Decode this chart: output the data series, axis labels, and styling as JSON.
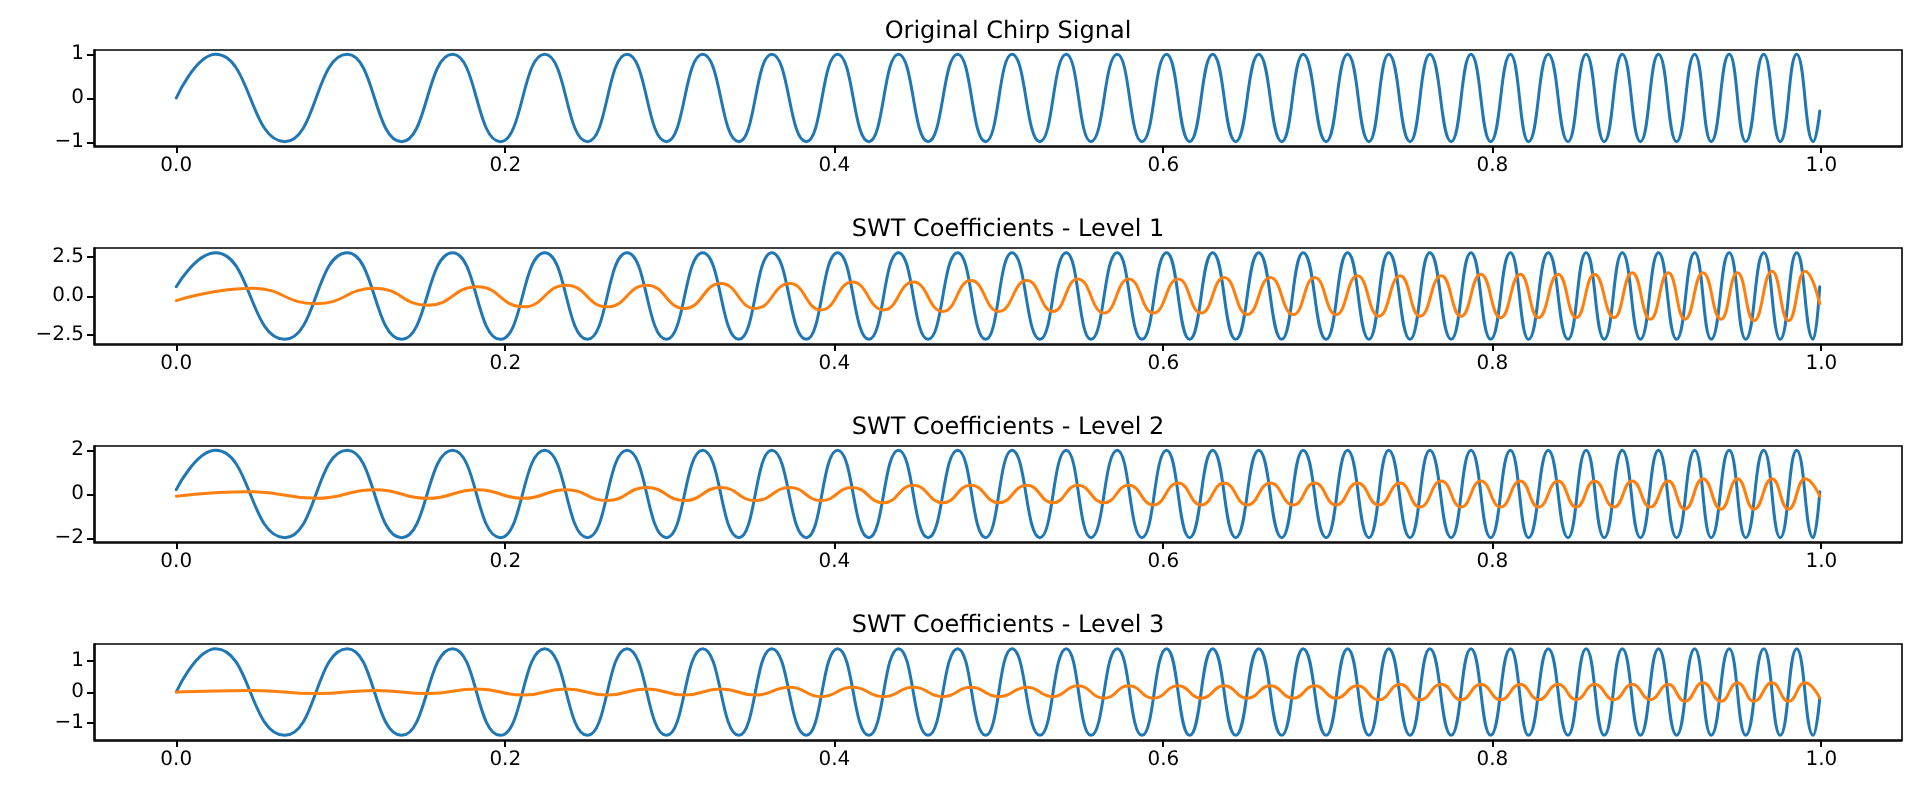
{
  "chart_data": [
    {
      "type": "line",
      "title": "Original Chirp Signal",
      "xlim": [
        -0.05,
        1.049
      ],
      "xticks": [
        {
          "value": 0,
          "label": "0.0"
        },
        {
          "value": 0.2,
          "label": "0.2"
        },
        {
          "value": 0.4,
          "label": "0.4"
        },
        {
          "value": 0.6,
          "label": "0.6"
        },
        {
          "value": 0.8,
          "label": "0.8"
        },
        {
          "value": 1,
          "label": "1.0"
        }
      ],
      "ylim": [
        -1.1,
        1.1
      ],
      "yticks": [
        {
          "value": -1,
          "label": "−1"
        },
        0,
        1
      ],
      "x": [
        0,
        0.024,
        0.066,
        0.104,
        0.137,
        0.168,
        0.197,
        0.224,
        0.25,
        0.274,
        0.298,
        0.32,
        0.342,
        0.362,
        0.383,
        0.402,
        0.421,
        0.439,
        0.457,
        0.475,
        0.492,
        0.508,
        0.525,
        0.541,
        0.556,
        0.572,
        0.587,
        0.602,
        0.616,
        0.63,
        0.644,
        0.658,
        0.672,
        0.685,
        0.699,
        0.712,
        0.725,
        0.737,
        0.75,
        0.762,
        0.775,
        0.787,
        0.799,
        0.811,
        0.822,
        0.834,
        0.846,
        0.857,
        0.868,
        0.879,
        0.89,
        0.901,
        0.912,
        0.923,
        0.933,
        0.944,
        0.954,
        0.965,
        0.975,
        0.985,
        0.995,
        0.999
      ],
      "series": [
        {
          "color": "#1f77b4",
          "values": [
            0,
            1,
            -1,
            1,
            -1,
            1,
            -1,
            1,
            -1,
            1,
            -1,
            1,
            -1,
            1,
            -1,
            1,
            -1,
            1,
            -1,
            1,
            -1,
            1,
            -1,
            1,
            -1,
            1,
            -1,
            1,
            -1,
            1,
            -1,
            1,
            -1,
            1,
            -1,
            1,
            -1,
            1,
            -1,
            1,
            -1,
            1,
            -1,
            1,
            -1,
            1,
            -1,
            1,
            -1,
            1,
            -1,
            1,
            -1,
            1,
            -1,
            1,
            -1,
            1,
            -1,
            1,
            -1,
            -0.3
          ]
        }
      ]
    },
    {
      "type": "line",
      "title": "SWT Coefficients - Level 1",
      "xlim": [
        -0.05,
        1.049
      ],
      "xticks": [
        {
          "value": 0,
          "label": "0.0"
        },
        {
          "value": 0.2,
          "label": "0.2"
        },
        {
          "value": 0.4,
          "label": "0.4"
        },
        {
          "value": 0.6,
          "label": "0.6"
        },
        {
          "value": 0.8,
          "label": "0.8"
        },
        {
          "value": 1,
          "label": "1.0"
        }
      ],
      "ylim": [
        -3.1,
        3.1
      ],
      "yticks": [
        {
          "value": -2.5,
          "label": "−2.5"
        },
        {
          "value": 0,
          "label": "0.0"
        },
        2.5
      ],
      "x": [
        0,
        0.024,
        0.066,
        0.104,
        0.137,
        0.168,
        0.197,
        0.224,
        0.25,
        0.274,
        0.298,
        0.32,
        0.342,
        0.362,
        0.383,
        0.402,
        0.421,
        0.439,
        0.457,
        0.475,
        0.492,
        0.508,
        0.525,
        0.541,
        0.556,
        0.572,
        0.587,
        0.602,
        0.616,
        0.63,
        0.644,
        0.658,
        0.672,
        0.685,
        0.699,
        0.712,
        0.725,
        0.737,
        0.75,
        0.762,
        0.775,
        0.787,
        0.799,
        0.811,
        0.822,
        0.834,
        0.846,
        0.857,
        0.868,
        0.879,
        0.89,
        0.901,
        0.912,
        0.923,
        0.933,
        0.944,
        0.954,
        0.965,
        0.975,
        0.985,
        0.995,
        0.999
      ],
      "series": [
        {
          "color": "#1f77b4",
          "values": [
            0.6,
            2.8,
            -2.8,
            2.8,
            -2.8,
            2.8,
            -2.8,
            2.8,
            -2.8,
            2.8,
            -2.8,
            2.8,
            -2.8,
            2.8,
            -2.8,
            2.8,
            -2.8,
            2.8,
            -2.8,
            2.8,
            -2.8,
            2.8,
            -2.8,
            2.8,
            -2.8,
            2.8,
            -2.8,
            2.8,
            -2.8,
            2.8,
            -2.8,
            2.8,
            -2.8,
            2.8,
            -2.8,
            2.8,
            -2.8,
            2.8,
            -2.8,
            2.8,
            -2.8,
            2.8,
            -2.8,
            2.8,
            -2.8,
            2.8,
            -2.8,
            2.8,
            -2.8,
            2.8,
            -2.8,
            2.8,
            -2.8,
            2.8,
            -2.8,
            2.8,
            -2.8,
            2.8,
            -2.8,
            2.8,
            -2.8,
            0.6
          ]
        },
        {
          "color": "#ff7f0e",
          "x": [
            0,
            0.046,
            0.085,
            0.121,
            0.153,
            0.183,
            0.211,
            0.237,
            0.262,
            0.286,
            0.309,
            0.331,
            0.352,
            0.373,
            0.392,
            0.411,
            0.43,
            0.448,
            0.466,
            0.483,
            0.5,
            0.517,
            0.533,
            0.548,
            0.564,
            0.579,
            0.594,
            0.609,
            0.623,
            0.637,
            0.651,
            0.665,
            0.679,
            0.692,
            0.705,
            0.718,
            0.731,
            0.744,
            0.756,
            0.769,
            0.781,
            0.793,
            0.805,
            0.817,
            0.828,
            0.84,
            0.851,
            0.862,
            0.874,
            0.885,
            0.896,
            0.907,
            0.917,
            0.928,
            0.939,
            0.949,
            0.959,
            0.97,
            0.98,
            0.99,
            0.999
          ],
          "values": [
            -0.3,
            0.5,
            -0.5,
            0.5,
            -0.6,
            0.6,
            -0.7,
            0.7,
            -0.7,
            0.7,
            -0.8,
            0.8,
            -0.8,
            0.8,
            -0.9,
            0.9,
            -0.9,
            0.9,
            -1.0,
            1.0,
            -1.0,
            1.0,
            -1.0,
            1.1,
            -1.1,
            1.1,
            -1.1,
            1.1,
            -1.1,
            1.2,
            -1.2,
            1.2,
            -1.2,
            1.2,
            -1.2,
            1.3,
            -1.3,
            1.3,
            -1.3,
            1.3,
            -1.3,
            1.4,
            -1.4,
            1.4,
            -1.4,
            1.4,
            -1.4,
            1.4,
            -1.4,
            1.5,
            -1.5,
            1.5,
            -1.5,
            1.5,
            -1.5,
            1.5,
            -1.6,
            1.6,
            -1.6,
            1.6,
            -0.5
          ]
        }
      ]
    },
    {
      "type": "line",
      "title": "SWT Coefficients - Level 2",
      "xlim": [
        -0.05,
        1.049
      ],
      "xticks": [
        {
          "value": 0,
          "label": "0.0"
        },
        {
          "value": 0.2,
          "label": "0.2"
        },
        {
          "value": 0.4,
          "label": "0.4"
        },
        {
          "value": 0.6,
          "label": "0.6"
        },
        {
          "value": 0.8,
          "label": "0.8"
        },
        {
          "value": 1,
          "label": "1.0"
        }
      ],
      "ylim": [
        -2.2,
        2.2
      ],
      "yticks": [
        {
          "value": -2,
          "label": "−2"
        },
        0,
        2
      ],
      "x": [
        0,
        0.024,
        0.066,
        0.104,
        0.137,
        0.168,
        0.197,
        0.224,
        0.25,
        0.274,
        0.298,
        0.32,
        0.342,
        0.362,
        0.383,
        0.402,
        0.421,
        0.439,
        0.457,
        0.475,
        0.492,
        0.508,
        0.525,
        0.541,
        0.556,
        0.572,
        0.587,
        0.602,
        0.616,
        0.63,
        0.644,
        0.658,
        0.672,
        0.685,
        0.699,
        0.712,
        0.725,
        0.737,
        0.75,
        0.762,
        0.775,
        0.787,
        0.799,
        0.811,
        0.822,
        0.834,
        0.846,
        0.857,
        0.868,
        0.879,
        0.89,
        0.901,
        0.912,
        0.923,
        0.933,
        0.944,
        0.954,
        0.965,
        0.975,
        0.985,
        0.995,
        0.999
      ],
      "series": [
        {
          "color": "#1f77b4",
          "values": [
            0.2,
            2,
            -2,
            2,
            -2,
            2,
            -2,
            2,
            -2,
            2,
            -2,
            2,
            -2,
            2,
            -2,
            2,
            -2,
            2,
            -2,
            2,
            -2,
            2,
            -2,
            2,
            -2,
            2,
            -2,
            2,
            -2,
            2,
            -2,
            2,
            -2,
            2,
            -2,
            2,
            -2,
            2,
            -2,
            2,
            -2,
            2,
            -2,
            2,
            -2,
            2,
            -2,
            2,
            -2,
            2,
            -2,
            2,
            -2,
            2,
            -2,
            2,
            -2,
            2,
            -2,
            2,
            -2,
            0.1
          ]
        },
        {
          "color": "#ff7f0e",
          "x": [
            0,
            0.046,
            0.085,
            0.121,
            0.153,
            0.183,
            0.211,
            0.237,
            0.262,
            0.286,
            0.309,
            0.331,
            0.352,
            0.373,
            0.392,
            0.411,
            0.43,
            0.448,
            0.466,
            0.483,
            0.5,
            0.517,
            0.533,
            0.548,
            0.564,
            0.579,
            0.594,
            0.609,
            0.623,
            0.637,
            0.651,
            0.665,
            0.679,
            0.692,
            0.705,
            0.718,
            0.731,
            0.744,
            0.756,
            0.769,
            0.781,
            0.793,
            0.805,
            0.817,
            0.828,
            0.84,
            0.851,
            0.862,
            0.874,
            0.885,
            0.896,
            0.907,
            0.917,
            0.928,
            0.939,
            0.949,
            0.959,
            0.97,
            0.98,
            0.99,
            0.999
          ],
          "values": [
            -0.1,
            0.1,
            -0.2,
            0.2,
            -0.2,
            0.2,
            -0.2,
            0.2,
            -0.3,
            0.3,
            -0.3,
            0.3,
            -0.3,
            0.3,
            -0.3,
            0.3,
            -0.4,
            0.4,
            -0.4,
            0.4,
            -0.4,
            0.4,
            -0.4,
            0.4,
            -0.4,
            0.4,
            -0.5,
            0.5,
            -0.5,
            0.5,
            -0.5,
            0.5,
            -0.5,
            0.5,
            -0.5,
            0.5,
            -0.5,
            0.5,
            -0.6,
            0.6,
            -0.6,
            0.6,
            -0.6,
            0.6,
            -0.6,
            0.6,
            -0.6,
            0.6,
            -0.6,
            0.6,
            -0.6,
            0.6,
            -0.7,
            0.7,
            -0.7,
            0.7,
            -0.7,
            0.7,
            -0.7,
            0.7,
            -0.1
          ]
        }
      ]
    },
    {
      "type": "line",
      "title": "SWT Coefficients - Level 3",
      "xlim": [
        -0.05,
        1.049
      ],
      "xticks": [
        {
          "value": 0,
          "label": "0.0"
        },
        {
          "value": 0.2,
          "label": "0.2"
        },
        {
          "value": 0.4,
          "label": "0.4"
        },
        {
          "value": 0.6,
          "label": "0.6"
        },
        {
          "value": 0.8,
          "label": "0.8"
        },
        {
          "value": 1,
          "label": "1.0"
        }
      ],
      "ylim": [
        -1.55,
        1.55
      ],
      "yticks": [
        {
          "value": -1,
          "label": "−1"
        },
        0,
        1
      ],
      "x": [
        0,
        0.024,
        0.066,
        0.104,
        0.137,
        0.168,
        0.197,
        0.224,
        0.25,
        0.274,
        0.298,
        0.32,
        0.342,
        0.362,
        0.383,
        0.402,
        0.421,
        0.439,
        0.457,
        0.475,
        0.492,
        0.508,
        0.525,
        0.541,
        0.556,
        0.572,
        0.587,
        0.602,
        0.616,
        0.63,
        0.644,
        0.658,
        0.672,
        0.685,
        0.699,
        0.712,
        0.725,
        0.737,
        0.75,
        0.762,
        0.775,
        0.787,
        0.799,
        0.811,
        0.822,
        0.834,
        0.846,
        0.857,
        0.868,
        0.879,
        0.89,
        0.901,
        0.912,
        0.923,
        0.933,
        0.944,
        0.954,
        0.965,
        0.975,
        0.985,
        0.995,
        0.999
      ],
      "series": [
        {
          "color": "#1f77b4",
          "values": [
            0,
            1.4,
            -1.4,
            1.4,
            -1.4,
            1.4,
            -1.4,
            1.4,
            -1.4,
            1.4,
            -1.4,
            1.4,
            -1.4,
            1.4,
            -1.4,
            1.4,
            -1.4,
            1.4,
            -1.4,
            1.4,
            -1.4,
            1.4,
            -1.4,
            1.4,
            -1.4,
            1.4,
            -1.4,
            1.4,
            -1.4,
            1.4,
            -1.4,
            1.4,
            -1.4,
            1.4,
            -1.4,
            1.4,
            -1.4,
            1.4,
            -1.4,
            1.4,
            -1.4,
            1.4,
            -1.4,
            1.4,
            -1.4,
            1.4,
            -1.4,
            1.4,
            -1.4,
            1.4,
            -1.4,
            1.4,
            -1.4,
            1.4,
            -1.4,
            1.4,
            -1.4,
            1.4,
            -1.4,
            1.4,
            -1.4,
            -0.2
          ]
        },
        {
          "color": "#ff7f0e",
          "x": [
            0,
            0.046,
            0.085,
            0.121,
            0.153,
            0.183,
            0.211,
            0.237,
            0.262,
            0.286,
            0.309,
            0.331,
            0.352,
            0.373,
            0.392,
            0.411,
            0.43,
            0.448,
            0.466,
            0.483,
            0.5,
            0.517,
            0.533,
            0.548,
            0.564,
            0.579,
            0.594,
            0.609,
            0.623,
            0.637,
            0.651,
            0.665,
            0.679,
            0.692,
            0.705,
            0.718,
            0.731,
            0.744,
            0.756,
            0.769,
            0.781,
            0.793,
            0.805,
            0.817,
            0.828,
            0.84,
            0.851,
            0.862,
            0.874,
            0.885,
            0.896,
            0.907,
            0.917,
            0.928,
            0.939,
            0.949,
            0.959,
            0.97,
            0.98,
            0.99,
            0.999
          ],
          "values": [
            0,
            0.05,
            -0.05,
            0.05,
            -0.05,
            0.1,
            -0.1,
            0.1,
            -0.1,
            0.1,
            -0.1,
            0.1,
            -0.1,
            0.15,
            -0.15,
            0.15,
            -0.15,
            0.15,
            -0.15,
            0.15,
            -0.15,
            0.15,
            -0.15,
            0.2,
            -0.2,
            0.2,
            -0.2,
            0.2,
            -0.2,
            0.2,
            -0.2,
            0.2,
            -0.2,
            0.2,
            -0.2,
            0.2,
            -0.25,
            0.25,
            -0.25,
            0.25,
            -0.25,
            0.25,
            -0.25,
            0.25,
            -0.25,
            0.25,
            -0.25,
            0.25,
            -0.25,
            0.25,
            -0.25,
            0.25,
            -0.3,
            0.3,
            -0.3,
            0.3,
            -0.3,
            0.3,
            -0.3,
            0.3,
            -0.2
          ]
        }
      ]
    }
  ]
}
